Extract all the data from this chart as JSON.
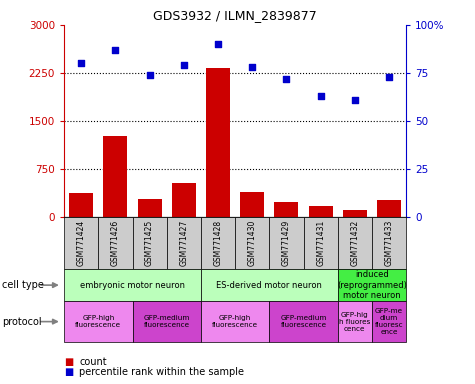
{
  "title": "GDS3932 / ILMN_2839877",
  "samples": [
    "GSM771424",
    "GSM771426",
    "GSM771425",
    "GSM771427",
    "GSM771428",
    "GSM771430",
    "GSM771429",
    "GSM771431",
    "GSM771432",
    "GSM771433"
  ],
  "counts": [
    370,
    1270,
    280,
    530,
    2320,
    390,
    230,
    170,
    110,
    260
  ],
  "percentiles": [
    80,
    87,
    74,
    79,
    90,
    78,
    72,
    63,
    61,
    73
  ],
  "ylim_left": [
    0,
    3000
  ],
  "ylim_right": [
    0,
    100
  ],
  "yticks_left": [
    0,
    750,
    1500,
    2250,
    3000
  ],
  "yticks_right": [
    0,
    25,
    50,
    75,
    100
  ],
  "ytick_labels_left": [
    "0",
    "750",
    "1500",
    "2250",
    "3000"
  ],
  "ytick_labels_right": [
    "0",
    "25",
    "50",
    "75",
    "100%"
  ],
  "bar_color": "#cc0000",
  "dot_color": "#0000cc",
  "hline_vals": [
    750,
    1500,
    2250
  ],
  "cell_types": [
    {
      "label": "embryonic motor neuron",
      "start": 0,
      "end": 4,
      "color": "#bbffbb"
    },
    {
      "label": "ES-derived motor neuron",
      "start": 4,
      "end": 8,
      "color": "#bbffbb"
    },
    {
      "label": "induced\n(reprogrammed)\nmotor neuron",
      "start": 8,
      "end": 10,
      "color": "#44ee44"
    }
  ],
  "protocols": [
    {
      "label": "GFP-high\nfluorescence",
      "start": 0,
      "end": 2,
      "color": "#ee88ee"
    },
    {
      "label": "GFP-medium\nfluorescence",
      "start": 2,
      "end": 4,
      "color": "#cc44cc"
    },
    {
      "label": "GFP-high\nfluorescence",
      "start": 4,
      "end": 6,
      "color": "#ee88ee"
    },
    {
      "label": "GFP-medium\nfluorescence",
      "start": 6,
      "end": 8,
      "color": "#cc44cc"
    },
    {
      "label": "GFP-hig\nh fluores\ncence",
      "start": 8,
      "end": 9,
      "color": "#ee88ee"
    },
    {
      "label": "GFP-me\ndium\nfluoresc\nence",
      "start": 9,
      "end": 10,
      "color": "#cc44cc"
    }
  ],
  "sample_bg_color": "#cccccc",
  "legend_bar_label": "count",
  "legend_dot_label": "percentile rank within the sample"
}
